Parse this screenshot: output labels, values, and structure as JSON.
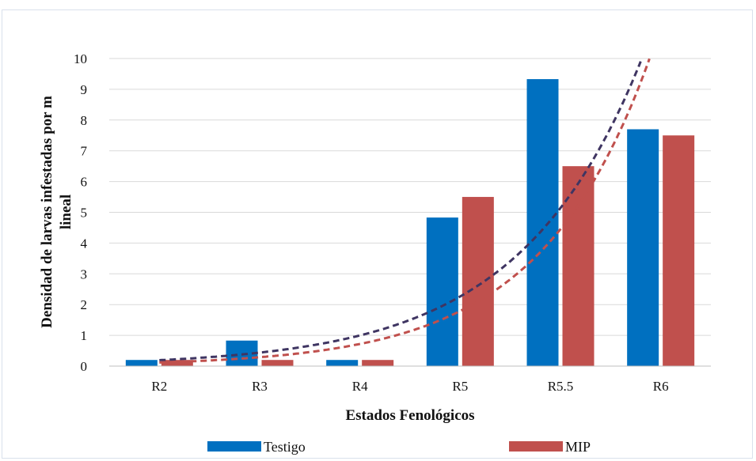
{
  "chart_data": {
    "type": "bar",
    "title": "",
    "xlabel": "Estados  Fenológicos",
    "ylabel": "Densidad de larvas infestadas por m lineal",
    "ylim": [
      0,
      10
    ],
    "yticks": [
      "0",
      "1",
      "2",
      "3",
      "4",
      "5",
      "6",
      "7",
      "8",
      "9",
      "10"
    ],
    "categories": [
      "R2",
      "R3",
      "R4",
      "R5",
      "R5.5",
      "R6"
    ],
    "series": [
      {
        "name": "Testigo",
        "values": [
          0.2,
          0.83,
          0.2,
          4.83,
          9.33,
          7.7
        ],
        "color": "#0070c0"
      },
      {
        "name": "MIP",
        "values": [
          0.2,
          0.2,
          0.2,
          5.5,
          6.5,
          7.5
        ],
        "color": "#c0504d"
      }
    ],
    "trendlines": [
      {
        "type": "exponential",
        "series": "Testigo",
        "style": "dashed",
        "color": "#3f3562"
      },
      {
        "type": "exponential",
        "series": "MIP",
        "style": "dashed",
        "color": "#c0504d"
      }
    ],
    "grid": true,
    "legend_position": "bottom"
  }
}
